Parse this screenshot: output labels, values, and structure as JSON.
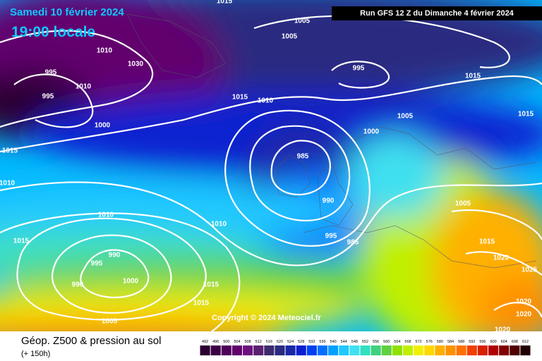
{
  "header": {
    "date": "Samedi 10 février 2024",
    "time": "19:00 locale",
    "run": "Run GFS 12 Z du Dimanche 4 février 2024"
  },
  "copyright": "Copyright © 2024 Meteociel.fr",
  "footer": {
    "title": "Géop. Z500 & pression au sol",
    "lead": "(+ 150h)"
  },
  "scale": {
    "values": [
      492,
      496,
      500,
      504,
      508,
      512,
      516,
      520,
      524,
      528,
      532,
      536,
      540,
      544,
      548,
      552,
      556,
      560,
      564,
      568,
      572,
      576,
      580,
      584,
      588,
      592,
      596,
      600,
      604,
      608,
      612
    ],
    "colors": [
      "#2b0030",
      "#3d0045",
      "#4f005a",
      "#62006e",
      "#6e1080",
      "#5a2070",
      "#3c2a6e",
      "#2a2a80",
      "#1a28a8",
      "#0a20d0",
      "#0040f0",
      "#0070ff",
      "#00a0ff",
      "#20c8ff",
      "#40e0f0",
      "#30e0c0",
      "#40d080",
      "#60d040",
      "#90e000",
      "#c0f000",
      "#f0f000",
      "#ffd800",
      "#ffb000",
      "#ff9000",
      "#ff7000",
      "#f04000",
      "#d82000",
      "#b00000",
      "#800000",
      "#500000",
      "#200000"
    ]
  },
  "isobar_labels": [
    "1015",
    "1005",
    "1005",
    "1010",
    "1030",
    "995",
    "1010",
    "995",
    "1000",
    "1015",
    "1010",
    "995",
    "1015",
    "1015",
    "1010",
    "1005",
    "1015",
    "1000",
    "985",
    "990",
    "1005",
    "1010",
    "1010",
    "1015",
    "995",
    "985",
    "1015",
    "990",
    "995",
    "1020",
    "1025",
    "990",
    "1000",
    "1015",
    "1015",
    "1020",
    "1020",
    "1005",
    "1020"
  ]
}
